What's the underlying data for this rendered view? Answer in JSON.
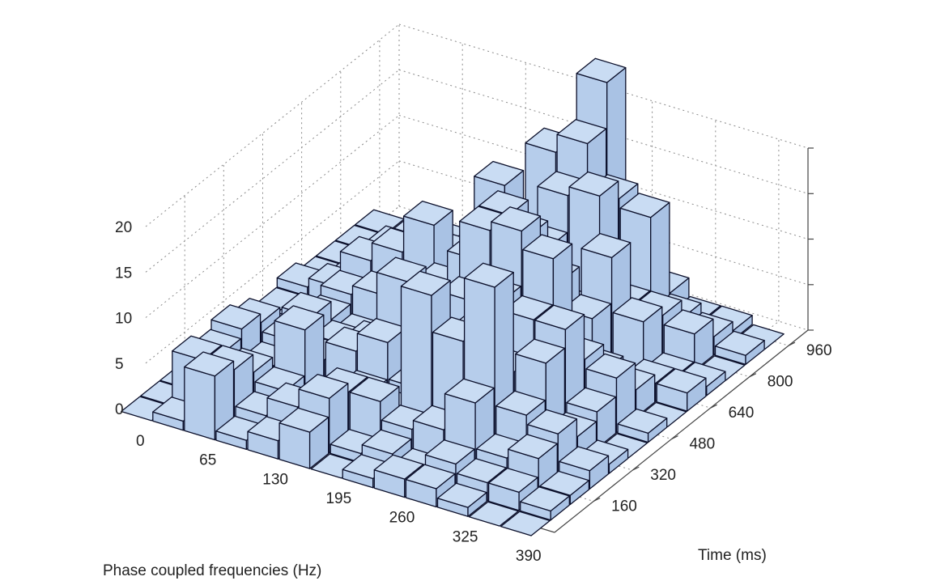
{
  "chart_data": {
    "type": "bar3d",
    "xlabel": "Phase coupled frequencies (Hz)",
    "ylabel": "Time (ms)",
    "zlabel": "",
    "x_ticks": [
      "390",
      "325",
      "260",
      "195",
      "130",
      "65",
      "0"
    ],
    "y_ticks": [
      "160",
      "320",
      "480",
      "640",
      "800",
      "960"
    ],
    "z_ticks": [
      "0",
      "5",
      "10",
      "15",
      "20"
    ],
    "xlim": [
      0,
      420
    ],
    "ylim": [
      0,
      1040
    ],
    "zlim": [
      0,
      22
    ],
    "grid": true,
    "bar_color": "#bcd3ef",
    "freq_bins_hz": [
      0,
      32.5,
      65,
      97.5,
      130,
      162.5,
      195,
      227.5,
      260,
      292.5,
      325,
      357.5,
      390
    ],
    "time_bins_ms": [
      0,
      80,
      160,
      240,
      320,
      400,
      480,
      560,
      640,
      720,
      800,
      880,
      960
    ],
    "counts": [
      [
        0,
        0,
        0,
        0,
        1,
        0,
        0,
        0,
        1,
        0,
        0,
        0,
        0
      ],
      [
        1,
        6,
        5,
        6,
        5,
        2,
        1,
        0,
        2,
        1,
        0,
        1,
        0
      ],
      [
        7,
        6,
        4,
        3,
        4,
        5,
        3,
        4,
        6,
        3,
        1,
        1,
        1
      ],
      [
        1,
        2,
        3,
        8,
        3,
        3,
        2,
        5,
        8,
        4,
        3,
        2,
        0
      ],
      [
        2,
        4,
        2,
        1,
        5,
        4,
        2,
        4,
        12,
        7,
        5,
        2,
        1
      ],
      [
        4,
        6,
        5,
        3,
        7,
        12,
        2,
        8,
        2,
        6,
        14,
        8,
        2
      ],
      [
        0,
        1,
        5,
        2,
        3,
        6,
        3,
        12,
        11,
        8,
        6,
        17,
        15
      ],
      [
        1,
        2,
        3,
        16,
        9,
        12,
        18,
        18,
        14,
        11,
        15,
        19,
        24
      ],
      [
        2,
        1,
        4,
        12,
        11,
        13,
        19,
        6,
        10,
        5,
        16,
        14,
        2
      ],
      [
        2,
        3,
        8,
        19,
        8,
        12,
        17,
        4,
        7,
        12,
        5,
        13,
        3
      ],
      [
        1,
        2,
        3,
        6,
        10,
        12,
        7,
        4,
        1,
        6,
        5,
        3,
        1
      ],
      [
        0,
        2,
        4,
        5,
        3,
        4,
        6,
        3,
        2,
        1,
        4,
        2,
        1
      ],
      [
        0,
        1,
        1,
        2,
        1,
        0,
        1,
        0,
        2,
        1,
        0,
        1,
        0
      ]
    ]
  }
}
